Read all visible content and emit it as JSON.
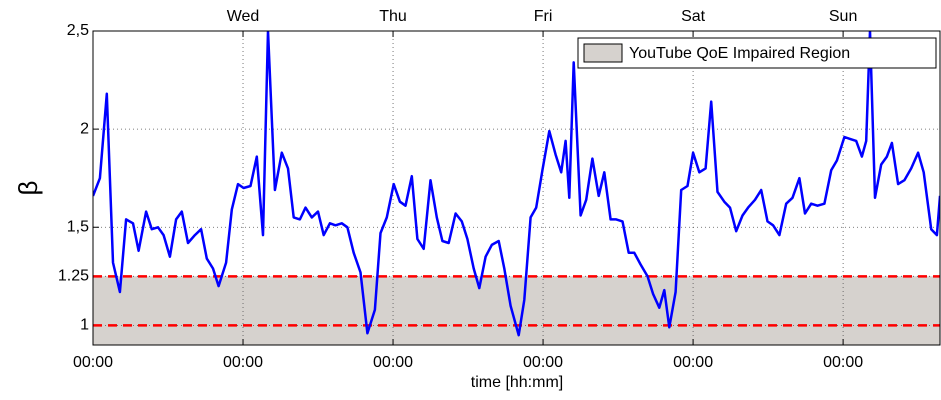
{
  "chart_data": {
    "type": "line",
    "ylabel": "β",
    "xlabel": "time [hh:mm]",
    "xlim": [
      0,
      135.5
    ],
    "ylim": [
      0.9,
      2.5
    ],
    "xticks": [
      {
        "value": 0,
        "label": "00:00"
      },
      {
        "value": 24,
        "label": "00:00"
      },
      {
        "value": 48,
        "label": "00:00"
      },
      {
        "value": 72,
        "label": "00:00"
      },
      {
        "value": 96,
        "label": "00:00"
      },
      {
        "value": 120,
        "label": "00:00"
      }
    ],
    "top_ticks": [
      {
        "value": 24,
        "label": "Wed"
      },
      {
        "value": 48,
        "label": "Thu"
      },
      {
        "value": 72,
        "label": "Fri"
      },
      {
        "value": 96,
        "label": "Sat"
      },
      {
        "value": 120,
        "label": "Sun"
      }
    ],
    "yticks": [
      1,
      1.25,
      {
        "value": 1.5,
        "label": "1,5"
      },
      2,
      {
        "value": 2.5,
        "label": "2,5"
      }
    ],
    "grid": true,
    "legend_position": "top-right",
    "shaded_region": {
      "name": "YouTube QoE Impaired Region",
      "ymax": 1.25,
      "color": "#d6d2ce"
    },
    "threshold_lines": [
      {
        "value": 1,
        "color": "#ff0000"
      },
      {
        "value": 1.25,
        "color": "#ff0000"
      }
    ],
    "series": [
      {
        "color": "#0000ff",
        "x": [
          0,
          1.1,
          2.2,
          3.2,
          4.3,
          5.3,
          6.4,
          7.3,
          8.5,
          9.4,
          10.4,
          11.3,
          12.3,
          13.3,
          14.2,
          15.2,
          16.3,
          17.3,
          18.2,
          19.2,
          20.1,
          21.3,
          22.2,
          23.2,
          24.1,
          25.2,
          26.2,
          27.2,
          28.0,
          29.1,
          30.2,
          31.2,
          32.1,
          33.1,
          34.0,
          35.0,
          36.0,
          36.9,
          37.9,
          38.8,
          39.8,
          40.7,
          41.7,
          42.8,
          43.9,
          45.1,
          46.0,
          47.0,
          48.1,
          49.1,
          50.0,
          51.0,
          51.9,
          52.9,
          54.0,
          55.0,
          55.9,
          56.9,
          58.0,
          59.0,
          59.9,
          60.9,
          61.8,
          62.8,
          63.8,
          64.9,
          65.8,
          66.8,
          68.1,
          69.0,
          70.0,
          70.9,
          71.9,
          73.0,
          74.0,
          74.9,
          75.6,
          76.2,
          76.9,
          78.0,
          78.9,
          79.9,
          80.9,
          81.8,
          82.8,
          83.7,
          84.7,
          85.7,
          86.6,
          87.6,
          88.7,
          89.6,
          90.6,
          91.4,
          92.2,
          93.2,
          94.1,
          95.1,
          96.0,
          97.0,
          98.0,
          98.9,
          99.9,
          101.0,
          101.9,
          102.9,
          103.9,
          104.8,
          105.9,
          106.9,
          107.9,
          108.8,
          109.8,
          110.9,
          111.9,
          113.0,
          113.9,
          114.9,
          115.9,
          117.0,
          118.1,
          119.0,
          120.2,
          121.1,
          122.1,
          123.0,
          123.7,
          124.3,
          125.1,
          126.1,
          127.0,
          127.8,
          128.8,
          129.8,
          130.9,
          132.0,
          132.9,
          134.1,
          135.0,
          135.5
        ],
        "values": [
          1.66,
          1.75,
          2.18,
          1.32,
          1.17,
          1.54,
          1.52,
          1.38,
          1.58,
          1.49,
          1.5,
          1.46,
          1.35,
          1.54,
          1.58,
          1.42,
          1.46,
          1.49,
          1.34,
          1.29,
          1.2,
          1.32,
          1.59,
          1.72,
          1.7,
          1.71,
          1.86,
          1.46,
          2.5,
          1.69,
          1.88,
          1.8,
          1.55,
          1.54,
          1.6,
          1.55,
          1.58,
          1.46,
          1.52,
          1.51,
          1.52,
          1.5,
          1.37,
          1.27,
          0.96,
          1.08,
          1.47,
          1.55,
          1.72,
          1.63,
          1.61,
          1.76,
          1.44,
          1.39,
          1.74,
          1.55,
          1.43,
          1.42,
          1.57,
          1.53,
          1.44,
          1.29,
          1.19,
          1.35,
          1.41,
          1.43,
          1.29,
          1.1,
          0.95,
          1.13,
          1.55,
          1.6,
          1.79,
          1.99,
          1.87,
          1.78,
          1.94,
          1.65,
          2.34,
          1.56,
          1.64,
          1.85,
          1.66,
          1.78,
          1.54,
          1.54,
          1.53,
          1.37,
          1.37,
          1.31,
          1.25,
          1.16,
          1.09,
          1.18,
          0.99,
          1.17,
          1.69,
          1.71,
          1.88,
          1.78,
          1.8,
          2.14,
          1.68,
          1.63,
          1.6,
          1.48,
          1.56,
          1.6,
          1.64,
          1.69,
          1.53,
          1.51,
          1.46,
          1.62,
          1.65,
          1.75,
          1.57,
          1.62,
          1.61,
          1.62,
          1.79,
          1.84,
          1.96,
          1.95,
          1.94,
          1.86,
          1.94,
          2.5,
          1.65,
          1.82,
          1.86,
          1.93,
          1.72,
          1.74,
          1.8,
          1.88,
          1.78,
          1.49,
          1.46,
          1.66
        ]
      }
    ]
  }
}
